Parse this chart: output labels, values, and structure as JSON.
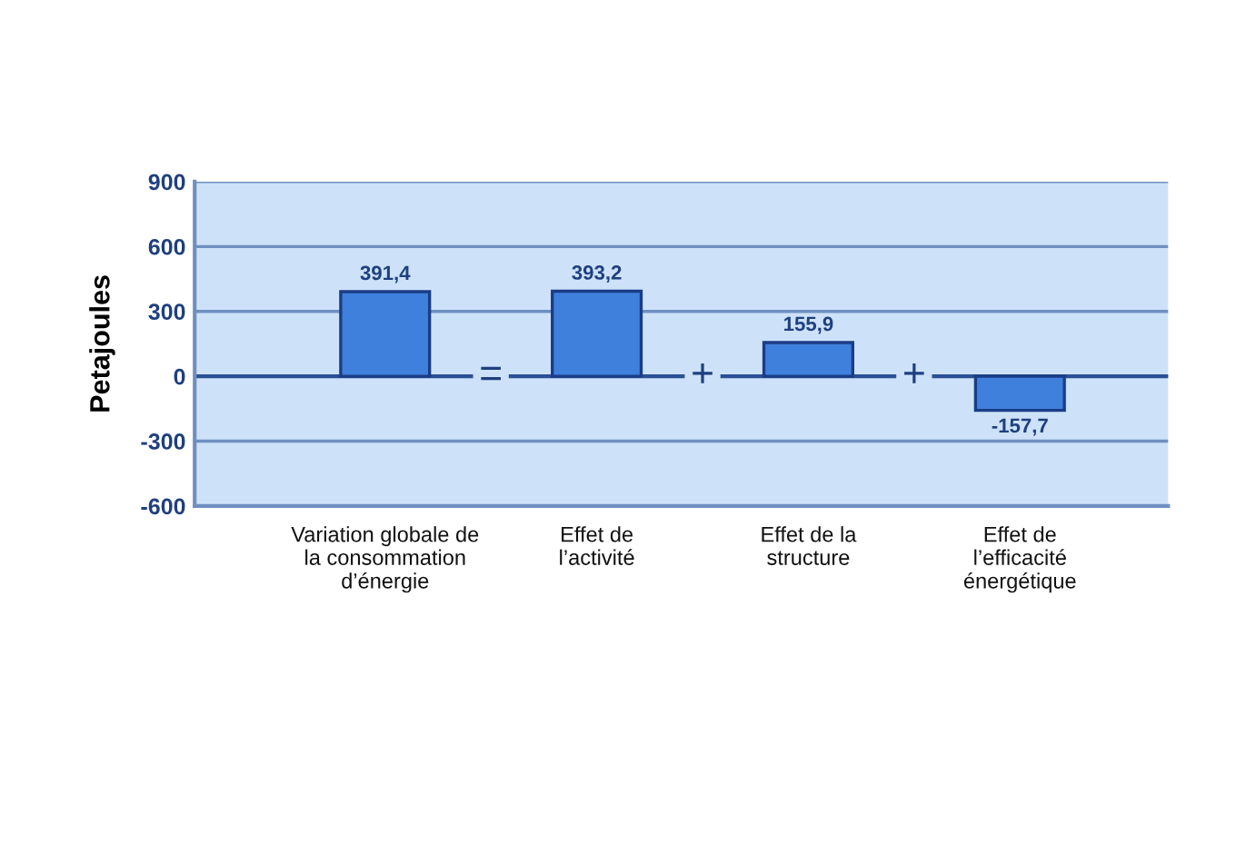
{
  "chart_data": {
    "type": "bar",
    "ylabel": "Petajoules",
    "categories": [
      "Variation globale de\nla consommation\nd’énergie",
      "Effet de\nl’activité",
      "Effet de la\nstructure",
      "Effet de\nl’efficacité\nénergétique"
    ],
    "values": [
      391.4,
      393.2,
      155.9,
      -157.7
    ],
    "color": "#3f80dc",
    "value_labels": [
      "391,4",
      "393,2",
      "155,9",
      "-157,7"
    ],
    "ylim": [
      -600,
      900
    ],
    "yticks": [
      {
        "value": -600,
        "label": "-600"
      },
      {
        "value": -300,
        "label": "-300"
      },
      0,
      300,
      600,
      900
    ],
    "grid": "y",
    "ref_lines": [
      {
        "axis": "y",
        "value": 0,
        "color": "#2a4f95"
      }
    ],
    "annotations": [
      "=",
      "+",
      "+"
    ]
  }
}
